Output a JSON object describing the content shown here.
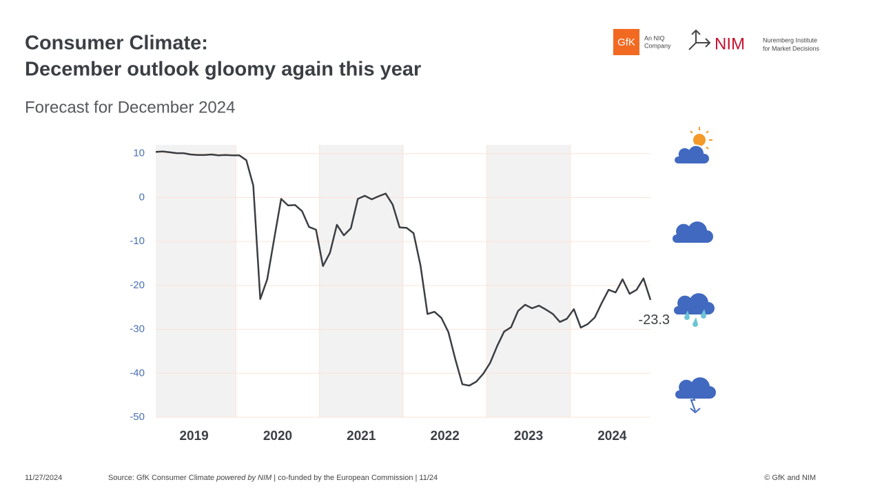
{
  "header": {
    "title_line1": "Consumer Climate:",
    "title_line2": "December outlook gloomy again this year",
    "logo_gfk": "GfK",
    "logo_gfk_sub1": "An NIQ",
    "logo_gfk_sub2": "Company",
    "logo_nim": "NIM",
    "logo_nim_sub1": "Nuremberg Institute",
    "logo_nim_sub2": "for Market Decisions"
  },
  "chart_data": {
    "type": "line",
    "subtitle": "Forecast for December 2024",
    "categories": [
      null,
      null,
      null,
      null,
      null,
      null,
      "2019",
      null,
      null,
      null,
      null,
      null,
      null,
      null,
      null,
      null,
      null,
      null,
      "2020",
      null,
      null,
      null,
      null,
      null,
      null,
      null,
      null,
      null,
      null,
      null,
      "2021",
      null,
      null,
      null,
      null,
      null,
      null,
      null,
      null,
      null,
      null,
      null,
      "2022",
      null,
      null,
      null,
      null,
      null,
      null,
      null,
      null,
      null,
      null,
      null,
      "2023",
      null,
      null,
      null,
      null,
      null,
      null,
      null,
      null,
      null,
      null,
      null,
      "2024",
      null,
      null,
      null,
      null,
      null
    ],
    "series": [
      {
        "name": "Consumer Climate",
        "color": "#3a3d42",
        "values": [
          10.4,
          10.5,
          10.3,
          10.1,
          10.1,
          9.8,
          9.7,
          9.7,
          9.8,
          9.6,
          9.7,
          9.6,
          9.6,
          8.5,
          2.7,
          -23.1,
          -18.6,
          -9.4,
          -0.3,
          -1.8,
          -1.7,
          -3.1,
          -6.7,
          -7.3,
          -15.6,
          -12.6,
          -6.2,
          -8.6,
          -7.0,
          -0.3,
          0.4,
          -0.4,
          0.3,
          0.9,
          -1.6,
          -6.8,
          -6.9,
          -8.1,
          -15.5,
          -26.5,
          -26.0,
          -27.4,
          -30.6,
          -36.8,
          -42.5,
          -42.8,
          -41.9,
          -40.1,
          -37.6,
          -33.8,
          -30.5,
          -29.5,
          -25.8,
          -24.4,
          -25.2,
          -24.6,
          -25.5,
          -26.5,
          -28.3,
          -27.6,
          -25.4,
          -29.6,
          -28.8,
          -27.3,
          -24.0,
          -21.0,
          -21.6,
          -18.6,
          -21.9,
          -21.0,
          -18.4,
          -23.3
        ]
      }
    ],
    "annotation": "-23.3",
    "ylim": [
      -50,
      12
    ],
    "yticks": [
      -50,
      -40,
      -30,
      -20,
      -10,
      0,
      10
    ],
    "grid": true
  },
  "footer": {
    "date": "11/27/2024",
    "source_a": "Source: GfK Consumer Climate ",
    "source_b": "powered by NIM",
    "source_c": " | co-funded by the European Commission | 11/24",
    "copyright": "© GfK and NIM"
  }
}
